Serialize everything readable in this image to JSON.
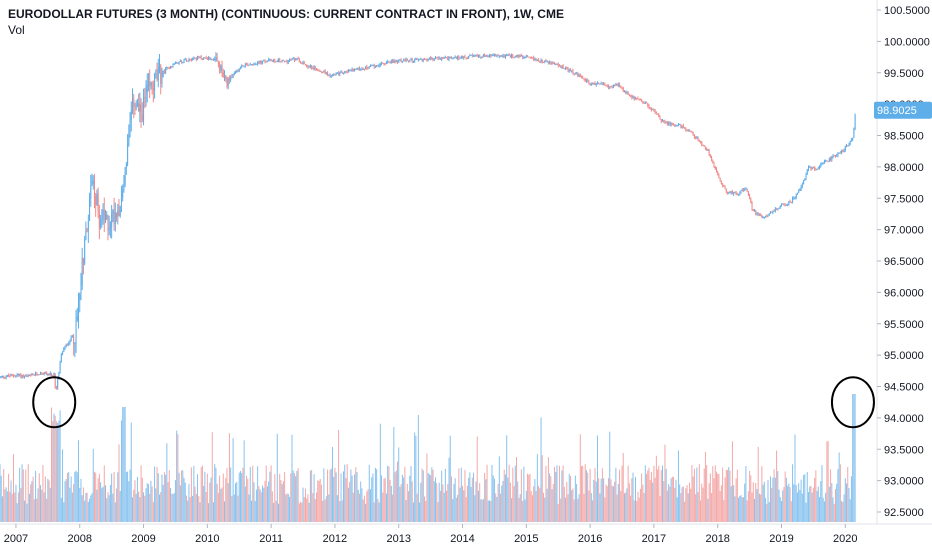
{
  "chart_data": {
    "type": "candlestick",
    "title": "EURODOLLAR FUTURES (3 MONTH) (CONTINUOUS: CURRENT CONTRACT IN FRONT), 1W, CME",
    "subtitle": "Vol",
    "y_ticks": [
      "100.5000",
      "100.0000",
      "99.5000",
      "99.0000",
      "98.5000",
      "98.0000",
      "97.5000",
      "97.0000",
      "96.5000",
      "96.0000",
      "95.5000",
      "95.0000",
      "94.5000",
      "94.0000",
      "93.5000",
      "93.0000",
      "92.5000"
    ],
    "y_tick_values": [
      100.5,
      100.0,
      99.5,
      99.0,
      98.5,
      98.0,
      97.5,
      97.0,
      96.5,
      96.0,
      95.5,
      95.0,
      94.5,
      94.0,
      93.5,
      93.0,
      92.5
    ],
    "x_ticks": [
      "2007",
      "2008",
      "2009",
      "2010",
      "2011",
      "2012",
      "2013",
      "2014",
      "2015",
      "2016",
      "2017",
      "2018",
      "2019",
      "2020"
    ],
    "x_tick_values": [
      2007,
      2008,
      2009,
      2010,
      2011,
      2012,
      2013,
      2014,
      2015,
      2016,
      2017,
      2018,
      2019,
      2020
    ],
    "ylim": [
      92.25,
      100.75
    ],
    "xlim": [
      2006.75,
      2020.45
    ],
    "last_price": "98.9025",
    "last_price_value": 98.9025,
    "price_path": [
      [
        2006.75,
        94.65
      ],
      [
        2007.0,
        94.68
      ],
      [
        2007.2,
        94.66
      ],
      [
        2007.4,
        94.72
      ],
      [
        2007.6,
        94.68
      ],
      [
        2007.62,
        94.4
      ],
      [
        2007.72,
        95.05
      ],
      [
        2007.85,
        95.25
      ],
      [
        2007.95,
        95.4
      ],
      [
        2008.0,
        96.1
      ],
      [
        2008.1,
        97.0
      ],
      [
        2008.15,
        97.4
      ],
      [
        2008.2,
        97.9
      ],
      [
        2008.3,
        97.2
      ],
      [
        2008.45,
        97.1
      ],
      [
        2008.65,
        97.45
      ],
      [
        2008.75,
        98.3
      ],
      [
        2008.85,
        99.1
      ],
      [
        2008.95,
        98.8
      ],
      [
        2009.05,
        99.15
      ],
      [
        2009.2,
        99.4
      ],
      [
        2009.35,
        99.55
      ],
      [
        2009.5,
        99.65
      ],
      [
        2009.7,
        99.72
      ],
      [
        2009.9,
        99.74
      ],
      [
        2010.1,
        99.72
      ],
      [
        2010.2,
        99.58
      ],
      [
        2010.3,
        99.3
      ],
      [
        2010.4,
        99.45
      ],
      [
        2010.55,
        99.62
      ],
      [
        2010.8,
        99.66
      ],
      [
        2011.0,
        99.7
      ],
      [
        2011.2,
        99.68
      ],
      [
        2011.4,
        99.72
      ],
      [
        2011.55,
        99.62
      ],
      [
        2011.75,
        99.55
      ],
      [
        2011.95,
        99.45
      ],
      [
        2012.1,
        99.5
      ],
      [
        2012.3,
        99.55
      ],
      [
        2012.5,
        99.58
      ],
      [
        2012.7,
        99.63
      ],
      [
        2012.9,
        99.68
      ],
      [
        2013.2,
        99.7
      ],
      [
        2013.5,
        99.72
      ],
      [
        2013.8,
        99.73
      ],
      [
        2014.1,
        99.76
      ],
      [
        2014.4,
        99.77
      ],
      [
        2014.7,
        99.77
      ],
      [
        2014.9,
        99.76
      ],
      [
        2015.1,
        99.72
      ],
      [
        2015.3,
        99.68
      ],
      [
        2015.5,
        99.62
      ],
      [
        2015.7,
        99.52
      ],
      [
        2015.9,
        99.4
      ],
      [
        2016.0,
        99.32
      ],
      [
        2016.15,
        99.33
      ],
      [
        2016.3,
        99.28
      ],
      [
        2016.45,
        99.3
      ],
      [
        2016.55,
        99.18
      ],
      [
        2016.7,
        99.1
      ],
      [
        2016.85,
        99.02
      ],
      [
        2016.95,
        98.95
      ],
      [
        2017.1,
        98.75
      ],
      [
        2017.25,
        98.68
      ],
      [
        2017.4,
        98.66
      ],
      [
        2017.55,
        98.58
      ],
      [
        2017.7,
        98.42
      ],
      [
        2017.85,
        98.25
      ],
      [
        2017.95,
        98.0
      ],
      [
        2018.05,
        97.75
      ],
      [
        2018.15,
        97.6
      ],
      [
        2018.3,
        97.58
      ],
      [
        2018.45,
        97.65
      ],
      [
        2018.55,
        97.3
      ],
      [
        2018.7,
        97.2
      ],
      [
        2018.85,
        97.28
      ],
      [
        2019.0,
        97.38
      ],
      [
        2019.15,
        97.45
      ],
      [
        2019.25,
        97.58
      ],
      [
        2019.35,
        97.78
      ],
      [
        2019.42,
        98.0
      ],
      [
        2019.55,
        97.95
      ],
      [
        2019.65,
        98.05
      ],
      [
        2019.8,
        98.15
      ],
      [
        2019.95,
        98.25
      ],
      [
        2020.05,
        98.35
      ],
      [
        2020.12,
        98.45
      ],
      [
        2020.16,
        98.9
      ]
    ],
    "volume_axis": "relative",
    "up_color": "#5eaeea",
    "down_color": "#f08a8a",
    "annotations": [
      {
        "shape": "circle",
        "x": 2007.6,
        "y": 94.25
      },
      {
        "shape": "circle",
        "x": 2020.12,
        "y": 94.25
      }
    ]
  }
}
